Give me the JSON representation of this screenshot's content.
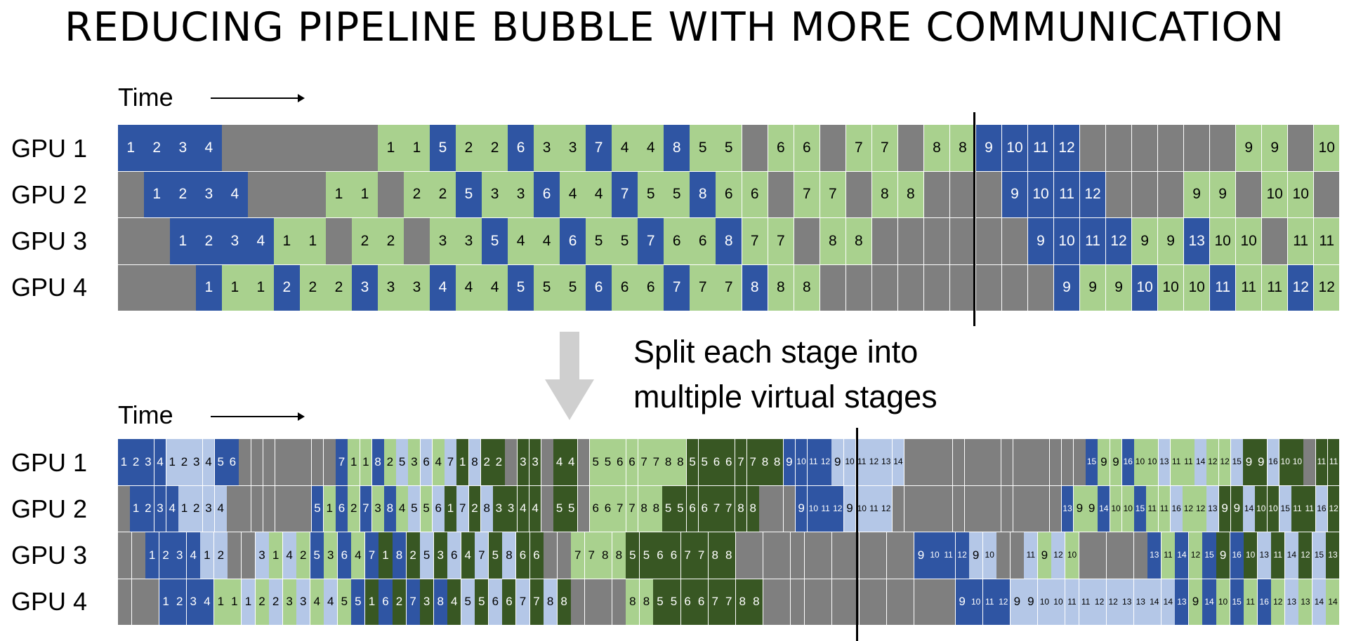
{
  "title": "REDUCING PIPELINE BUBBLE WITH MORE COMMUNICATION",
  "time_label": "Time",
  "split_text": [
    "Split each stage into",
    "multiple virtual stages"
  ],
  "gpu_labels": [
    "GPU 1",
    "GPU 2",
    "GPU 3",
    "GPU 4"
  ],
  "colors": {
    "idle": "#7f7f7f",
    "forward_chunk_1": "#2f55a3",
    "forward_chunk_2": "#b4c7e7",
    "backward_chunk_1": "#a9d18e",
    "backward_chunk_2": "#385723"
  },
  "top_schedule": {
    "rows": [
      [
        "f:1",
        "f:2",
        "f:3",
        "f:4",
        "i",
        "i",
        "i",
        "i",
        "i",
        "i",
        "b:1",
        "b:1",
        "f:5",
        "b:2",
        "b:2",
        "f:6",
        "b:3",
        "b:3",
        "f:7",
        "b:4",
        "b:4",
        "f:8",
        "b:5",
        "b:5",
        "i",
        "b:6",
        "b:6",
        "i",
        "b:7",
        "b:7",
        "i",
        "b:8",
        "b:8",
        "f:9",
        "f:10",
        "f:11",
        "f:12",
        "i",
        "i",
        "i",
        "i",
        "i",
        "i",
        "b:9",
        "b:9",
        "i",
        "b:10"
      ],
      [
        "i",
        "f:1",
        "f:2",
        "f:3",
        "f:4",
        "i",
        "i",
        "i",
        "b:1",
        "b:1",
        "i",
        "b:2",
        "b:2",
        "f:5",
        "b:3",
        "b:3",
        "f:6",
        "b:4",
        "b:4",
        "f:7",
        "b:5",
        "b:5",
        "f:8",
        "b:6",
        "b:6",
        "i",
        "b:7",
        "b:7",
        "i",
        "b:8",
        "b:8",
        "i",
        "i",
        "i",
        "f:9",
        "f:10",
        "f:11",
        "f:12",
        "i",
        "i",
        "i",
        "b:9",
        "b:9",
        "i",
        "b:10",
        "b:10",
        "i"
      ],
      [
        "i",
        "i",
        "f:1",
        "f:2",
        "f:3",
        "f:4",
        "b:1",
        "b:1",
        "i",
        "b:2",
        "b:2",
        "i",
        "b:3",
        "b:3",
        "f:5",
        "b:4",
        "b:4",
        "f:6",
        "b:5",
        "b:5",
        "f:7",
        "b:6",
        "b:6",
        "f:8",
        "b:7",
        "b:7",
        "i",
        "b:8",
        "b:8",
        "i",
        "i",
        "i",
        "i",
        "i",
        "i",
        "f:9",
        "f:10",
        "f:11",
        "f:12",
        "b:9",
        "b:9",
        "f:13",
        "b:10",
        "b:10",
        "i",
        "b:11",
        "b:11"
      ],
      [
        "i",
        "i",
        "i",
        "f:1",
        "b:1",
        "b:1",
        "f:2",
        "b:2",
        "b:2",
        "f:3",
        "b:3",
        "b:3",
        "f:4",
        "b:4",
        "b:4",
        "f:5",
        "b:5",
        "b:5",
        "f:6",
        "b:6",
        "b:6",
        "f:7",
        "b:7",
        "b:7",
        "f:8",
        "b:8",
        "b:8",
        "i",
        "i",
        "i",
        "i",
        "i",
        "i",
        "i",
        "i",
        "i",
        "f:9",
        "b:9",
        "b:9",
        "f:10",
        "b:10",
        "b:10",
        "f:11",
        "b:11",
        "b:11",
        "f:12",
        "b:12"
      ]
    ]
  },
  "bottom_schedule": {
    "rows": [
      [
        "f:1",
        "f:2",
        "f:3",
        "f:4",
        "g:1",
        "g:2",
        "g:3",
        "g:4",
        "f:5",
        "f:6",
        "i",
        "i",
        "i",
        "i",
        "i",
        "i",
        "i",
        "i",
        "f:7",
        "b:1",
        "b:1",
        "f:8",
        "b:2",
        "g:5",
        "b:3",
        "g:6",
        "b:4",
        "g:7",
        "d:1",
        "g:8",
        "d:2",
        "d:2",
        "i",
        "d:3",
        "d:3",
        "i",
        "d:4",
        "d:4",
        "i",
        "b:5",
        "b:5",
        "b:6",
        "b:6",
        "b:7",
        "b:7",
        "b:8",
        "b:8",
        "d:5",
        "d:5",
        "d:6",
        "d:6",
        "d:7",
        "d:7",
        "d:8",
        "d:8",
        "f:9",
        "f:10",
        "f:11",
        "f:12",
        "g:9",
        "g:10",
        "g:11",
        "g:12",
        "g:13",
        "g:14",
        "i",
        "i",
        "i",
        "i",
        "i",
        "i",
        "i",
        "i",
        "i",
        "i",
        "i",
        "i",
        "i",
        "i",
        "i",
        "f:15",
        "b:9",
        "b:9",
        "f:16",
        "b:10",
        "b:10",
        "g:13",
        "b:11",
        "b:11",
        "g:14",
        "b:12",
        "b:12",
        "g:15",
        "d:9",
        "d:9",
        "g:16",
        "d:10",
        "d:10",
        "i",
        "d:11",
        "d:11"
      ],
      [
        "i",
        "f:1",
        "f:2",
        "f:3",
        "f:4",
        "g:1",
        "g:2",
        "g:3",
        "g:4",
        "i",
        "i",
        "i",
        "i",
        "i",
        "i",
        "i",
        "f:5",
        "b:1",
        "f:6",
        "b:2",
        "f:7",
        "b:3",
        "f:8",
        "b:4",
        "g:5",
        "b:5",
        "g:6",
        "d:1",
        "g:7",
        "d:2",
        "g:8",
        "d:3",
        "d:3",
        "d:4",
        "d:4",
        "i",
        "d:5",
        "d:5",
        "i",
        "b:6",
        "b:6",
        "b:7",
        "b:7",
        "b:8",
        "b:8",
        "d:5",
        "d:5",
        "d:6",
        "d:6",
        "d:7",
        "d:7",
        "d:8",
        "d:8",
        "i",
        "i",
        "i",
        "f:9",
        "f:10",
        "f:11",
        "f:12",
        "g:9",
        "g:10",
        "g:11",
        "g:12",
        "i",
        "i",
        "i",
        "i",
        "i",
        "i",
        "i",
        "i",
        "i",
        "i",
        "i",
        "i",
        "i",
        "i",
        "f:13",
        "b:9",
        "b:9",
        "f:14",
        "b:10",
        "b:10",
        "f:15",
        "b:11",
        "b:11",
        "g:16",
        "b:12",
        "b:12",
        "g:13",
        "d:9",
        "d:9",
        "g:14",
        "d:10",
        "d:10",
        "g:15",
        "d:11",
        "d:11",
        "g:16",
        "d:12"
      ],
      [
        "i",
        "i",
        "f:1",
        "f:2",
        "f:3",
        "f:4",
        "g:1",
        "g:2",
        "i",
        "i",
        "g:3",
        "b:1",
        "g:4",
        "b:2",
        "f:5",
        "b:3",
        "f:6",
        "b:4",
        "f:7",
        "d:1",
        "f:8",
        "d:2",
        "g:5",
        "d:3",
        "g:6",
        "d:4",
        "g:7",
        "d:5",
        "g:8",
        "d:6",
        "d:6",
        "i",
        "i",
        "b:7",
        "b:7",
        "b:8",
        "b:8",
        "d:5",
        "d:5",
        "d:6",
        "d:6",
        "d:7",
        "d:7",
        "d:8",
        "d:8",
        "i",
        "i",
        "i",
        "i",
        "i",
        "i",
        "i",
        "i",
        "i",
        "i",
        "i",
        "i",
        "i",
        "f:9",
        "f:10",
        "f:11",
        "f:12",
        "g:9",
        "g:10",
        "i",
        "i",
        "g:11",
        "b:9",
        "g:12",
        "b:10",
        "i",
        "i",
        "i",
        "i",
        "i",
        "f:13",
        "b:11",
        "f:14",
        "b:12",
        "f:15",
        "d:9",
        "f:16",
        "d:10",
        "g:13",
        "d:11",
        "g:14",
        "d:12",
        "g:15",
        "d:13"
      ],
      [
        "i",
        "i",
        "i",
        "f:1",
        "f:2",
        "f:3",
        "f:4",
        "b:1",
        "b:1",
        "g:1",
        "b:2",
        "g:2",
        "b:3",
        "g:3",
        "b:4",
        "g:4",
        "b:5",
        "f:5",
        "d:1",
        "f:6",
        "d:2",
        "f:7",
        "d:3",
        "f:8",
        "d:4",
        "g:5",
        "d:5",
        "g:6",
        "d:6",
        "g:7",
        "d:7",
        "g:8",
        "d:8",
        "i",
        "i",
        "i",
        "i",
        "b:8",
        "b:8",
        "d:5",
        "d:5",
        "d:6",
        "d:6",
        "d:7",
        "d:7",
        "d:8",
        "d:8",
        "i",
        "i",
        "i",
        "i",
        "i",
        "i",
        "i",
        "i",
        "i",
        "i",
        "i",
        "i",
        "i",
        "i",
        "f:9",
        "f:10",
        "f:11",
        "f:12",
        "g:9",
        "g:9",
        "g:10",
        "g:10",
        "g:11",
        "g:11",
        "g:12",
        "g:12",
        "g:13",
        "g:13",
        "g:14",
        "g:14",
        "f:13",
        "b:9",
        "f:14",
        "b:10",
        "f:15",
        "b:11",
        "f:16",
        "b:12",
        "g:13",
        "b:13",
        "g:14",
        "b:14"
      ]
    ]
  }
}
